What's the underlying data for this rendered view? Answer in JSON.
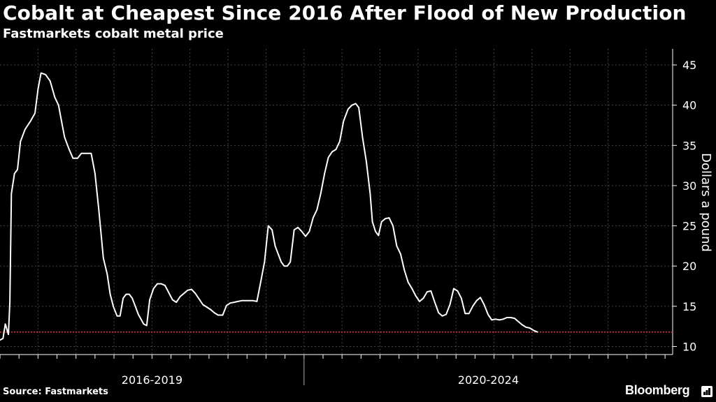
{
  "title": "Cobalt at Cheapest Since 2016 After Flood of New Production",
  "subtitle": "Fastmarkets cobalt metal price",
  "source": "Source:  Fastmarkets",
  "brand": "Bloomberg",
  "colors": {
    "background": "#000000",
    "line": "#ffffff",
    "grid": "#444444",
    "reference_line": "#e0383b",
    "text": "#ffffff"
  },
  "chart_data": {
    "type": "line",
    "title": "Cobalt at Cheapest Since 2016 After Flood of New Production",
    "subtitle": "Fastmarkets cobalt metal price",
    "ylabel": "Dollars a pound",
    "y_axis_position": "right",
    "ylim": [
      9,
      47
    ],
    "yticks": [
      10,
      15,
      20,
      25,
      30,
      35,
      40,
      45
    ],
    "xlim": [
      2016.0,
      2024.85
    ],
    "x_period_labels": [
      {
        "label": "2016-2019",
        "from": 2016.0,
        "to": 2020.0
      },
      {
        "label": "2020-2024",
        "from": 2020.0,
        "to": 2024.85
      }
    ],
    "grid": true,
    "reference_line": {
      "y": 11.8,
      "style": "dotted"
    },
    "series": [
      {
        "points": [
          [
            2016.0,
            10.8
          ],
          [
            2016.04,
            11.0
          ],
          [
            2016.07,
            12.8
          ],
          [
            2016.11,
            11.5
          ],
          [
            2016.13,
            15.5
          ],
          [
            2016.15,
            29.0
          ],
          [
            2016.19,
            31.5
          ],
          [
            2016.23,
            32.0
          ],
          [
            2016.27,
            35.5
          ],
          [
            2016.33,
            37.0
          ],
          [
            2016.4,
            38.0
          ],
          [
            2016.46,
            39.0
          ],
          [
            2016.5,
            42.0
          ],
          [
            2016.54,
            44.0
          ],
          [
            2016.6,
            43.8
          ],
          [
            2016.66,
            43.0
          ],
          [
            2016.72,
            41.0
          ],
          [
            2016.77,
            40.0
          ],
          [
            2016.81,
            38.0
          ],
          [
            2016.85,
            36.0
          ],
          [
            2016.91,
            34.5
          ],
          [
            2016.96,
            33.4
          ],
          [
            2017.02,
            33.4
          ],
          [
            2017.07,
            34.0
          ],
          [
            2017.14,
            34.0
          ],
          [
            2017.2,
            34.0
          ],
          [
            2017.25,
            31.5
          ],
          [
            2017.3,
            27.0
          ],
          [
            2017.36,
            21.0
          ],
          [
            2017.41,
            19.0
          ],
          [
            2017.45,
            16.5
          ],
          [
            2017.49,
            15.0
          ],
          [
            2017.54,
            13.8
          ],
          [
            2017.58,
            13.8
          ],
          [
            2017.62,
            16.0
          ],
          [
            2017.66,
            16.5
          ],
          [
            2017.7,
            16.5
          ],
          [
            2017.74,
            16.0
          ],
          [
            2017.78,
            15.0
          ],
          [
            2017.82,
            14.0
          ],
          [
            2017.86,
            13.3
          ],
          [
            2017.89,
            12.8
          ],
          [
            2017.93,
            12.6
          ],
          [
            2017.97,
            15.8
          ],
          [
            2018.02,
            17.2
          ],
          [
            2018.07,
            17.8
          ],
          [
            2018.12,
            17.8
          ],
          [
            2018.17,
            17.6
          ],
          [
            2018.22,
            16.7
          ],
          [
            2018.27,
            15.8
          ],
          [
            2018.32,
            15.5
          ],
          [
            2018.37,
            16.2
          ],
          [
            2018.42,
            16.6
          ],
          [
            2018.47,
            17.0
          ],
          [
            2018.52,
            17.1
          ],
          [
            2018.57,
            16.6
          ],
          [
            2018.62,
            15.9
          ],
          [
            2018.67,
            15.2
          ],
          [
            2018.72,
            14.9
          ],
          [
            2018.77,
            14.6
          ],
          [
            2018.82,
            14.2
          ],
          [
            2018.87,
            13.9
          ],
          [
            2018.93,
            13.9
          ],
          [
            2018.98,
            15.1
          ],
          [
            2019.03,
            15.4
          ],
          [
            2019.08,
            15.5
          ],
          [
            2019.13,
            15.6
          ],
          [
            2019.18,
            15.7
          ],
          [
            2019.23,
            15.7
          ],
          [
            2019.28,
            15.7
          ],
          [
            2019.33,
            15.7
          ],
          [
            2019.38,
            15.6
          ],
          [
            2019.43,
            18.0
          ],
          [
            2019.48,
            20.5
          ],
          [
            2019.53,
            25.0
          ],
          [
            2019.58,
            24.5
          ],
          [
            2019.62,
            22.5
          ],
          [
            2019.66,
            21.5
          ],
          [
            2019.7,
            20.5
          ],
          [
            2019.74,
            20.0
          ],
          [
            2019.78,
            20.0
          ],
          [
            2019.82,
            20.5
          ],
          [
            2019.87,
            24.5
          ],
          [
            2019.92,
            24.8
          ],
          [
            2019.97,
            24.3
          ],
          [
            2020.02,
            23.7
          ],
          [
            2020.07,
            24.3
          ],
          [
            2020.12,
            26.0
          ],
          [
            2020.17,
            27.0
          ],
          [
            2020.22,
            29.0
          ],
          [
            2020.27,
            31.5
          ],
          [
            2020.32,
            33.5
          ],
          [
            2020.37,
            34.2
          ],
          [
            2020.42,
            34.5
          ],
          [
            2020.47,
            35.5
          ],
          [
            2020.52,
            38.0
          ],
          [
            2020.58,
            39.5
          ],
          [
            2020.63,
            40.0
          ],
          [
            2020.68,
            40.2
          ],
          [
            2020.72,
            39.7
          ],
          [
            2020.77,
            36.0
          ],
          [
            2020.82,
            33.0
          ],
          [
            2020.87,
            29.0
          ],
          [
            2020.9,
            25.5
          ],
          [
            2020.94,
            24.3
          ],
          [
            2020.98,
            23.8
          ],
          [
            2021.02,
            25.5
          ],
          [
            2021.07,
            25.9
          ],
          [
            2021.12,
            26.0
          ],
          [
            2021.17,
            25.0
          ],
          [
            2021.22,
            22.5
          ],
          [
            2021.27,
            21.5
          ],
          [
            2021.32,
            19.5
          ],
          [
            2021.37,
            18.0
          ],
          [
            2021.42,
            17.2
          ],
          [
            2021.47,
            16.3
          ],
          [
            2021.52,
            15.6
          ],
          [
            2021.57,
            16.0
          ],
          [
            2021.62,
            16.8
          ],
          [
            2021.67,
            16.9
          ],
          [
            2021.72,
            15.5
          ],
          [
            2021.77,
            14.2
          ],
          [
            2021.82,
            13.8
          ],
          [
            2021.87,
            14.0
          ],
          [
            2021.92,
            15.2
          ],
          [
            2021.97,
            17.2
          ],
          [
            2022.02,
            16.9
          ],
          [
            2022.07,
            16.0
          ],
          [
            2022.12,
            14.1
          ],
          [
            2022.17,
            14.1
          ],
          [
            2022.22,
            15.0
          ],
          [
            2022.27,
            15.7
          ],
          [
            2022.32,
            16.1
          ],
          [
            2022.37,
            15.2
          ],
          [
            2022.42,
            14.0
          ],
          [
            2022.47,
            13.3
          ],
          [
            2022.52,
            13.4
          ],
          [
            2022.57,
            13.3
          ],
          [
            2022.62,
            13.4
          ],
          [
            2022.67,
            13.6
          ],
          [
            2022.72,
            13.6
          ],
          [
            2022.77,
            13.5
          ],
          [
            2022.82,
            13.1
          ],
          [
            2022.87,
            12.7
          ],
          [
            2022.92,
            12.4
          ],
          [
            2022.97,
            12.3
          ],
          [
            2023.02,
            12.0
          ],
          [
            2023.07,
            11.8
          ]
        ]
      }
    ]
  }
}
